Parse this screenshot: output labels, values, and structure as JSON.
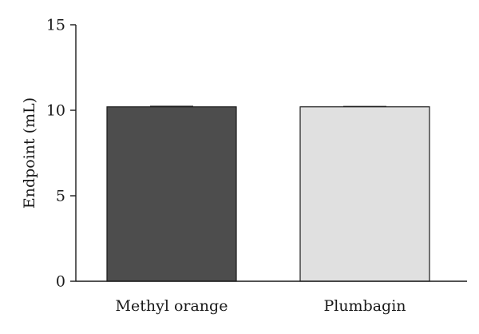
{
  "chart_data": {
    "type": "bar",
    "title": "",
    "xlabel": "",
    "ylabel": "Endpoint (mL)",
    "ylim": [
      0,
      15
    ],
    "yticks": [
      0,
      5,
      10,
      15
    ],
    "categories": [
      "Methyl orange",
      "Plumbagin"
    ],
    "values": [
      10.2,
      10.2
    ],
    "errors": [
      0.03,
      0.02
    ],
    "colors": [
      "#4d4d4d",
      "#e0e0e0"
    ],
    "grid": false,
    "legend": "none"
  }
}
